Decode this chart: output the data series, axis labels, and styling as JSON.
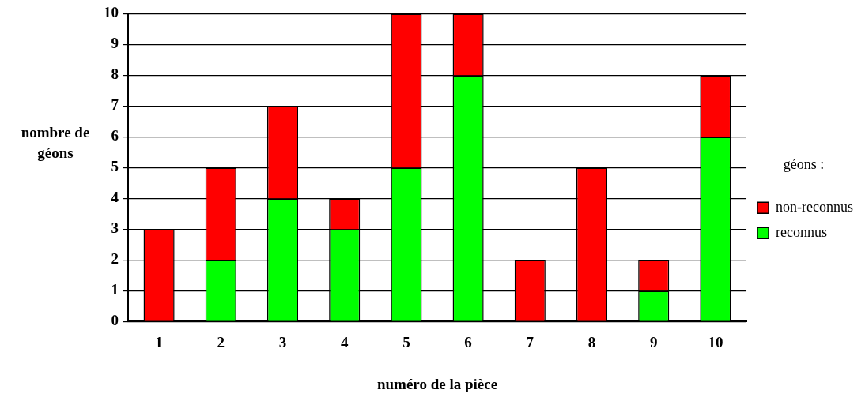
{
  "chart_data": {
    "type": "bar",
    "stacked": true,
    "xlabel": "numéro de la pièce",
    "ylabel": "nombre de géons",
    "legend_title": "géons :",
    "legend": "right",
    "categories": [
      "1",
      "2",
      "3",
      "4",
      "5",
      "6",
      "7",
      "8",
      "9",
      "10"
    ],
    "ylim": [
      0,
      10
    ],
    "yticks": [
      0,
      1,
      2,
      3,
      4,
      5,
      6,
      7,
      8,
      9,
      10
    ],
    "grid": "y",
    "series": [
      {
        "name": "reconnus",
        "color": "#00ff00",
        "values": [
          0,
          2,
          4,
          3,
          5,
          8,
          0,
          0,
          1,
          6
        ]
      },
      {
        "name": "non-reconnus",
        "color": "#ff0000",
        "values": [
          3,
          3,
          3,
          1,
          5,
          2,
          2,
          5,
          1,
          2
        ]
      }
    ]
  }
}
